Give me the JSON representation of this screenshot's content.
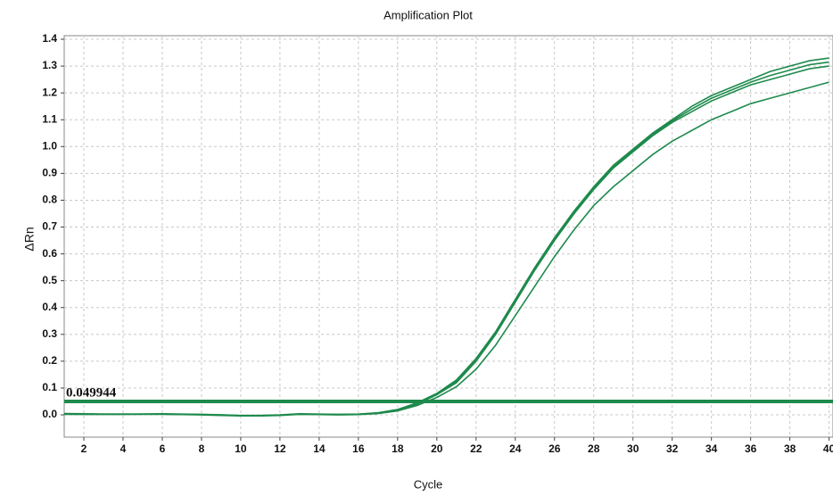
{
  "chart_data": {
    "type": "line",
    "title": "Amplification Plot",
    "x_label": "Cycle",
    "y_label": "ΔRn",
    "x": [
      1,
      2,
      3,
      4,
      5,
      6,
      7,
      8,
      9,
      10,
      11,
      12,
      13,
      14,
      15,
      16,
      17,
      18,
      19,
      20,
      21,
      22,
      23,
      24,
      25,
      26,
      27,
      28,
      29,
      30,
      31,
      32,
      33,
      34,
      35,
      36,
      37,
      38,
      39,
      40
    ],
    "series": [
      {
        "color": "#1e8a4c",
        "values": [
          0.005,
          0.004,
          0.003,
          0.003,
          0.003,
          0.004,
          0.003,
          0.002,
          0.0,
          -0.002,
          -0.002,
          0.0,
          0.004,
          0.003,
          0.002,
          0.003,
          0.008,
          0.02,
          0.045,
          0.08,
          0.13,
          0.21,
          0.31,
          0.43,
          0.55,
          0.66,
          0.76,
          0.85,
          0.93,
          0.99,
          1.05,
          1.1,
          1.15,
          1.19,
          1.22,
          1.25,
          1.28,
          1.3,
          1.32,
          1.33
        ]
      },
      {
        "color": "#1e8a4c",
        "values": [
          0.003,
          0.002,
          0.002,
          0.002,
          0.003,
          0.003,
          0.002,
          0.001,
          0.0,
          -0.003,
          -0.003,
          -0.001,
          0.003,
          0.002,
          0.001,
          0.002,
          0.006,
          0.018,
          0.04,
          0.075,
          0.12,
          0.2,
          0.3,
          0.42,
          0.54,
          0.65,
          0.75,
          0.84,
          0.92,
          0.98,
          1.04,
          1.09,
          1.13,
          1.17,
          1.2,
          1.23,
          1.25,
          1.27,
          1.29,
          1.3
        ]
      },
      {
        "color": "#1e8a4c",
        "values": [
          0.004,
          0.003,
          0.003,
          0.003,
          0.003,
          0.003,
          0.002,
          0.001,
          -0.001,
          -0.003,
          -0.003,
          -0.001,
          0.003,
          0.002,
          0.001,
          0.002,
          0.007,
          0.019,
          0.042,
          0.078,
          0.125,
          0.205,
          0.305,
          0.425,
          0.545,
          0.655,
          0.755,
          0.845,
          0.925,
          0.985,
          1.045,
          1.095,
          1.14,
          1.18,
          1.21,
          1.24,
          1.265,
          1.285,
          1.305,
          1.315
        ]
      },
      {
        "color": "#1e8a4c",
        "values": [
          0.002,
          0.002,
          0.002,
          0.002,
          0.002,
          0.002,
          0.001,
          0.0,
          -0.002,
          -0.004,
          -0.004,
          -0.002,
          0.002,
          0.001,
          0.0,
          0.001,
          0.005,
          0.015,
          0.035,
          0.065,
          0.105,
          0.17,
          0.26,
          0.37,
          0.48,
          0.59,
          0.69,
          0.78,
          0.85,
          0.91,
          0.97,
          1.02,
          1.06,
          1.1,
          1.13,
          1.16,
          1.18,
          1.2,
          1.22,
          1.24
        ]
      }
    ],
    "threshold": 0.049944,
    "threshold_color": "#1e8a4c",
    "threshold_label_color": "#d42020",
    "xlim": [
      1,
      40.2
    ],
    "xticks": [
      2,
      4,
      6,
      8,
      10,
      12,
      14,
      16,
      18,
      20,
      22,
      24,
      26,
      28,
      30,
      32,
      34,
      36,
      38,
      40
    ],
    "ylim": [
      -0.083,
      1.4
    ],
    "yticks": [
      {
        "value": 0,
        "label": "0.0"
      },
      0.1,
      0.2,
      0.3,
      0.4,
      0.5,
      0.6,
      0.7,
      0.8,
      0.9,
      {
        "value": 1,
        "label": "1.0"
      },
      1.1,
      1.2,
      1.3,
      1.4
    ],
    "grid": true
  }
}
